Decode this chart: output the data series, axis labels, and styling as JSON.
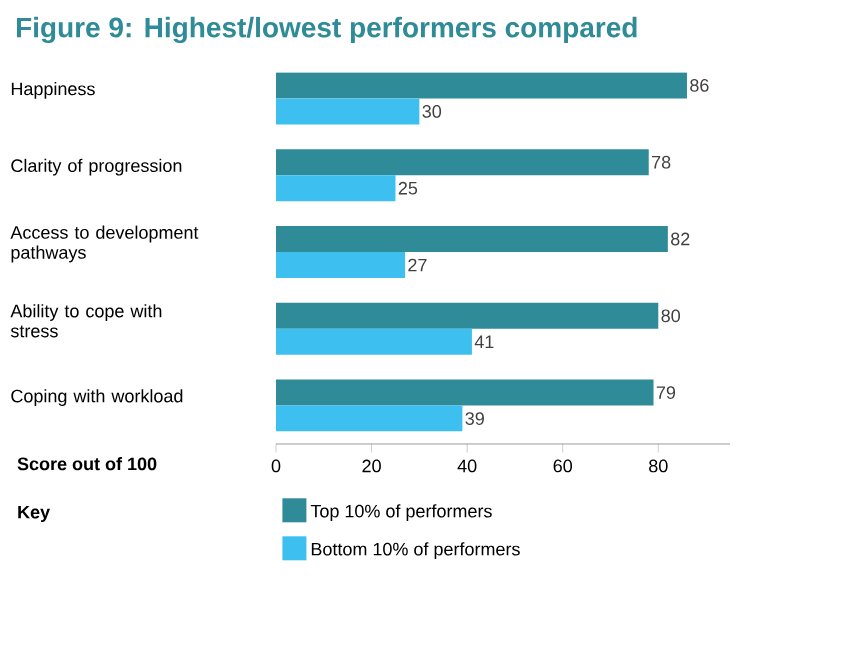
{
  "chart_data": {
    "type": "bar",
    "orientation": "horizontal",
    "title": "Figure 9: Highest/lowest performers compared",
    "categories": [
      "Happiness",
      "Clarity of progression",
      "Access to development pathways",
      "Ability to cope with stress",
      "Coping with workload"
    ],
    "series": [
      {
        "name": "Top 10% of performers",
        "color": "#2e8b97",
        "values": [
          86,
          78,
          82,
          80,
          79
        ]
      },
      {
        "name": "Bottom 10% of performers",
        "color": "#3dbfef",
        "values": [
          30,
          25,
          27,
          41,
          39
        ]
      }
    ],
    "xlabel": "Score out of 100",
    "legend_title": "Key",
    "xlim": [
      0,
      95
    ],
    "xticks": [
      0,
      20,
      40,
      60,
      80
    ],
    "data_labels": true,
    "legend": "bottom",
    "grid": false
  }
}
